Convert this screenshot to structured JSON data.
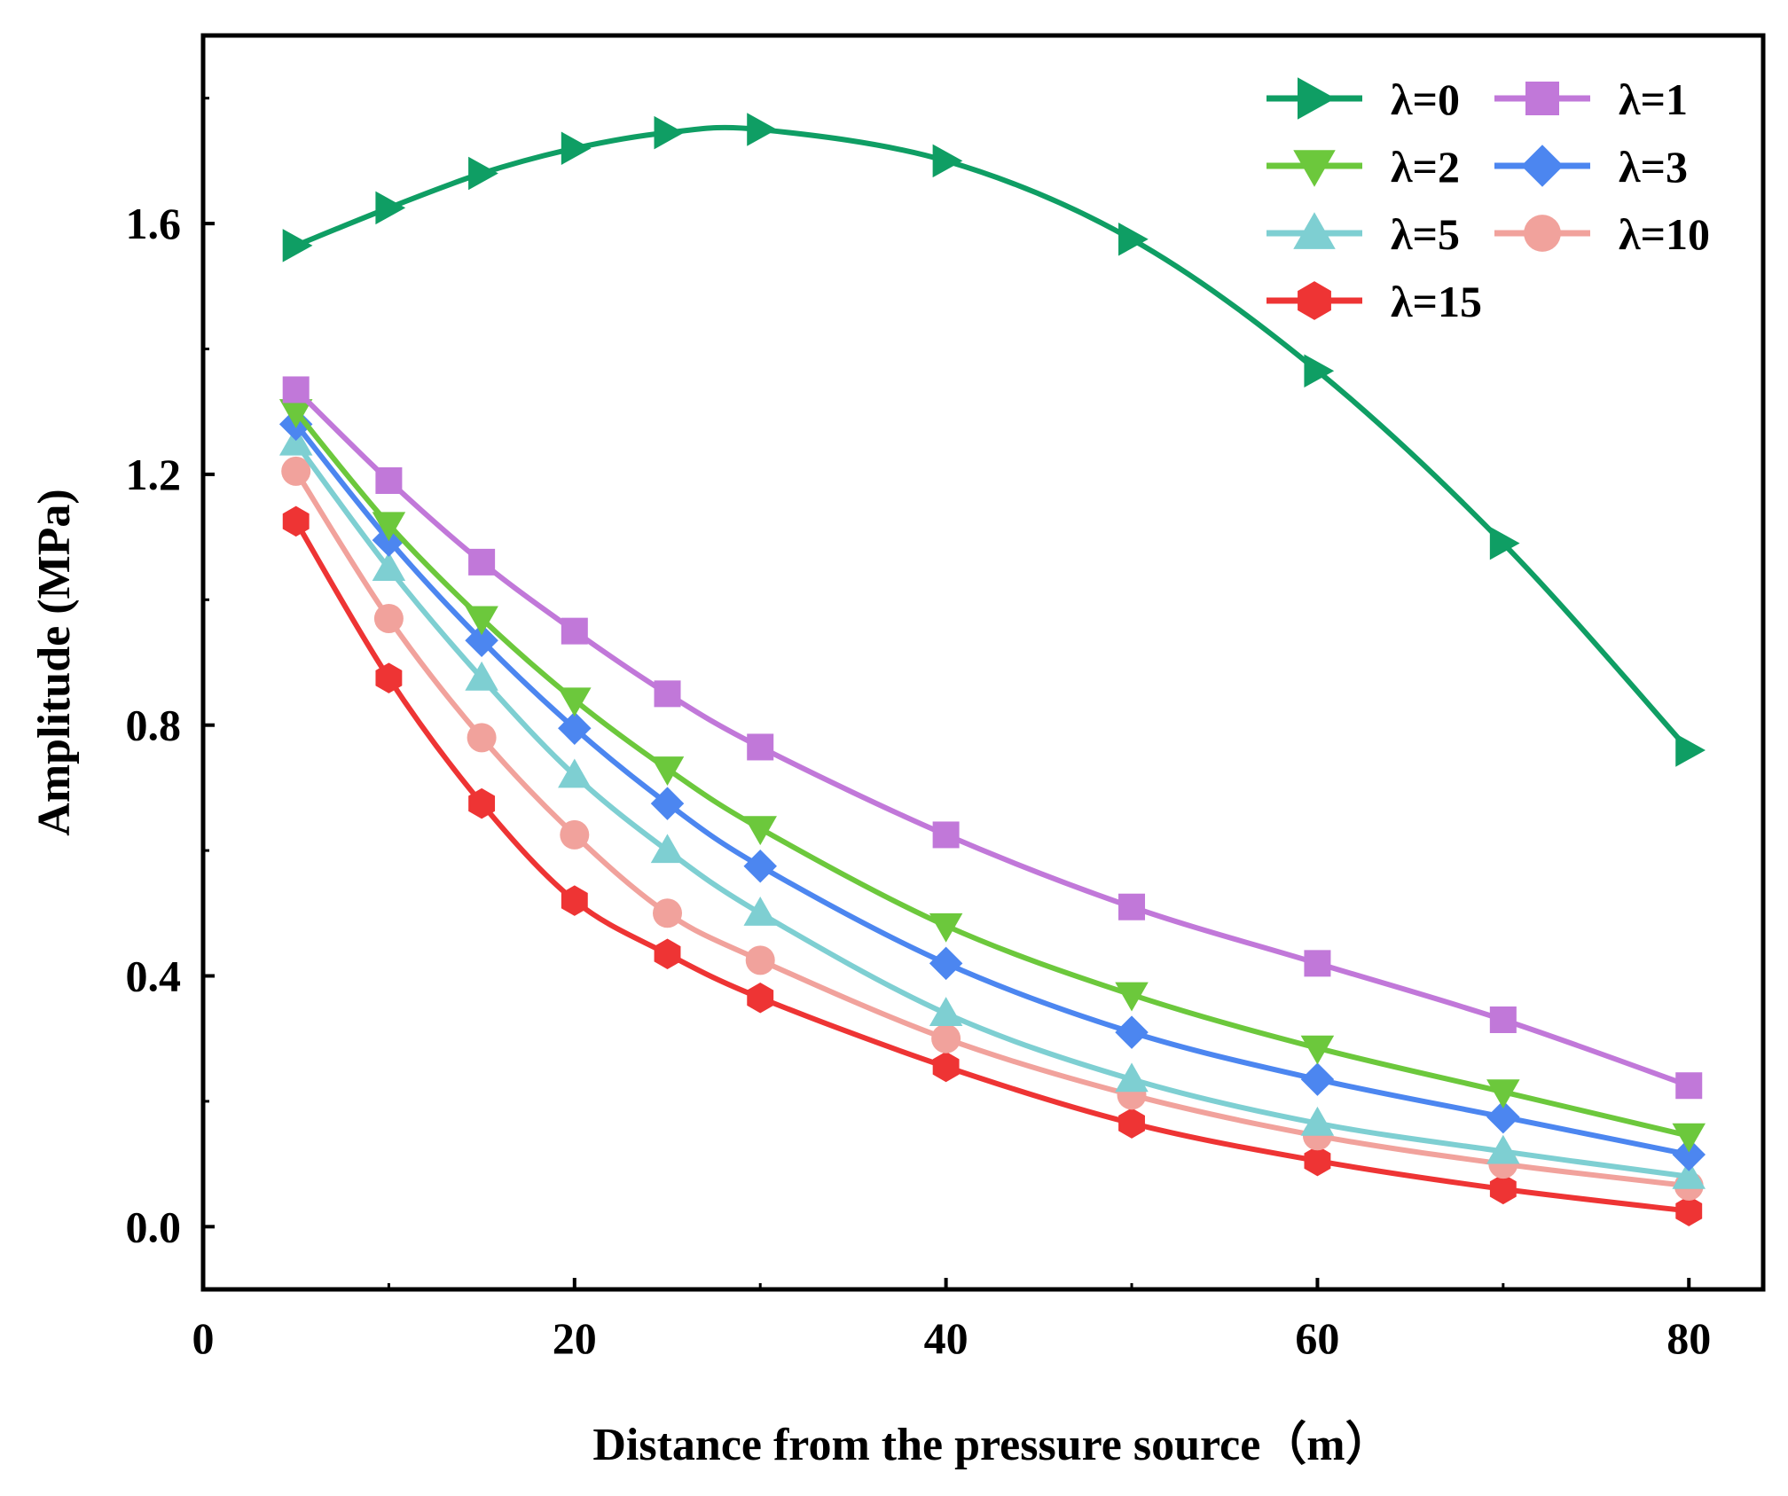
{
  "chart_data": {
    "type": "line",
    "title": "",
    "xlabel": "Distance from the pressure source（m）",
    "ylabel": "Amplitude (MPa)",
    "xlim": [
      0,
      84
    ],
    "ylim": [
      -0.1,
      1.9
    ],
    "xticks": [
      0,
      20,
      40,
      60,
      80
    ],
    "xtick_labels": [
      "0",
      "20",
      "40",
      "60",
      "80"
    ],
    "yticks": [
      0.0,
      0.4,
      0.8,
      1.2,
      1.6
    ],
    "ytick_labels": [
      "0.0",
      "0.4",
      "0.8",
      "1.2",
      "1.6"
    ],
    "x": [
      5,
      10,
      15,
      20,
      25,
      30,
      40,
      50,
      60,
      70,
      80
    ],
    "legend_position": "top-right",
    "grid": false,
    "series": [
      {
        "name": "λ=0",
        "color": "#0f9e64",
        "marker": "triangle-right",
        "values": [
          1.565,
          1.625,
          1.68,
          1.72,
          1.745,
          1.75,
          1.7,
          1.575,
          1.365,
          1.09,
          0.76
        ]
      },
      {
        "name": "λ=1",
        "color": "#c178d9",
        "marker": "square",
        "values": [
          1.335,
          1.19,
          1.06,
          0.95,
          0.85,
          0.765,
          0.625,
          0.51,
          0.42,
          0.33,
          0.225
        ]
      },
      {
        "name": "λ=2",
        "color": "#6cc83c",
        "marker": "triangle-down",
        "values": [
          1.3,
          1.12,
          0.97,
          0.84,
          0.73,
          0.635,
          0.48,
          0.37,
          0.285,
          0.215,
          0.145
        ]
      },
      {
        "name": "λ=3",
        "color": "#4c86f0",
        "marker": "diamond",
        "values": [
          1.28,
          1.095,
          0.935,
          0.795,
          0.675,
          0.575,
          0.42,
          0.31,
          0.235,
          0.175,
          0.115
        ]
      },
      {
        "name": "λ=5",
        "color": "#7ecfd2",
        "marker": "triangle-up",
        "values": [
          1.25,
          1.05,
          0.875,
          0.72,
          0.6,
          0.5,
          0.34,
          0.235,
          0.165,
          0.12,
          0.08
        ]
      },
      {
        "name": "λ=10",
        "color": "#f1a29c",
        "marker": "circle",
        "values": [
          1.205,
          0.97,
          0.78,
          0.625,
          0.5,
          0.425,
          0.3,
          0.21,
          0.145,
          0.1,
          0.065
        ]
      },
      {
        "name": "λ=15",
        "color": "#ee3434",
        "marker": "hexagon",
        "values": [
          1.125,
          0.875,
          0.675,
          0.52,
          0.435,
          0.365,
          0.255,
          0.165,
          0.105,
          0.06,
          0.025
        ]
      }
    ]
  }
}
